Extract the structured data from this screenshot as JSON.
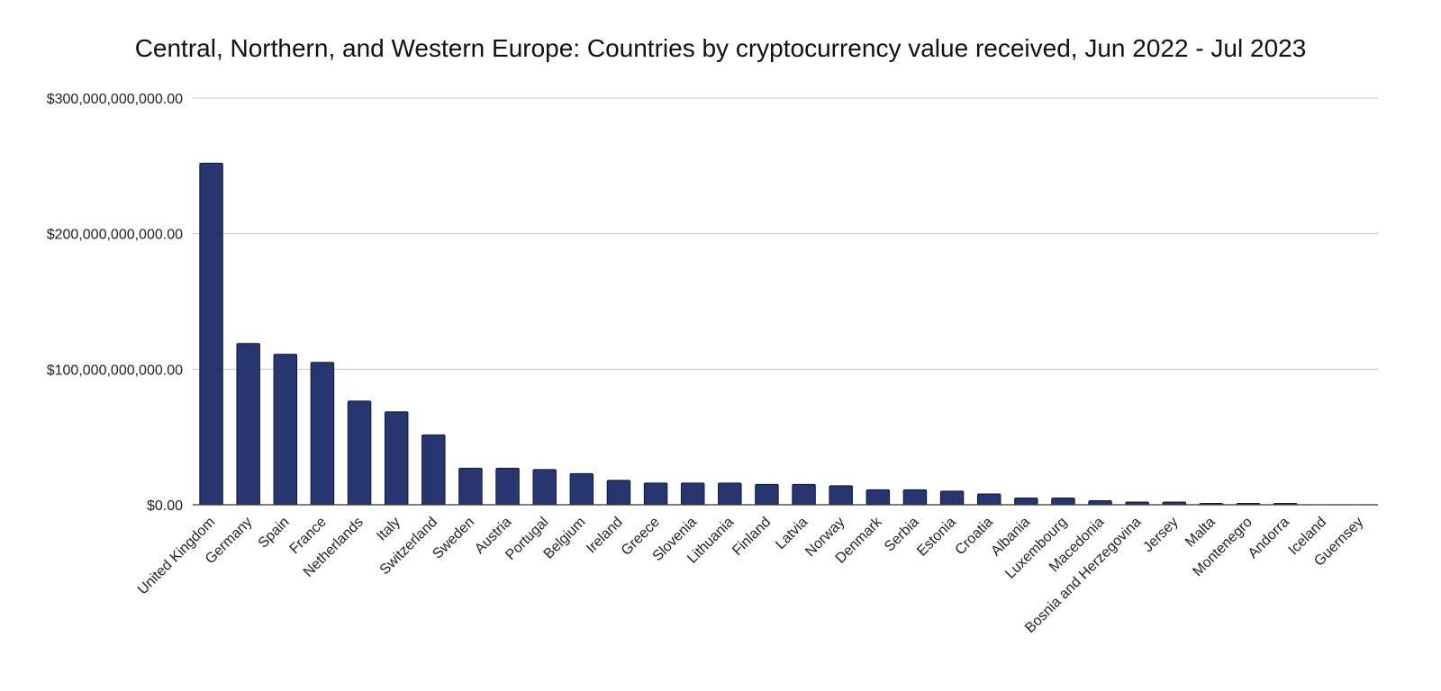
{
  "chart_data": {
    "type": "bar",
    "title": "Central, Northern, and Western Europe: Countries by cryptocurrency value received, Jun 2022 - Jul 2023",
    "xlabel": "",
    "ylabel": "",
    "ylim": [
      0,
      300000000000
    ],
    "yticks": [
      0,
      100000000000,
      200000000000,
      300000000000
    ],
    "ytick_labels": [
      "$0.00",
      "$100,000,000,000.00",
      "$200,000,000,000.00",
      "$300,000,000,000.00"
    ],
    "grid": true,
    "legend": "none",
    "bar_color": "#283670",
    "categories": [
      "United Kingdom",
      "Germany",
      "Spain",
      "France",
      "Netherlands",
      "Italy",
      "Switzerland",
      "Sweden",
      "Austria",
      "Portugal",
      "Belgium",
      "Ireland",
      "Greece",
      "Slovenia",
      "Lithuania",
      "Finland",
      "Latvia",
      "Norway",
      "Denmark",
      "Serbia",
      "Estonia",
      "Croatia",
      "Albania",
      "Luxembourg",
      "Macedonia",
      "Bosnia and Herzegovina",
      "Jersey",
      "Malta",
      "Montenegro",
      "Andorra",
      "Iceland",
      "Guernsey"
    ],
    "values": [
      252000000000,
      119000000000,
      111000000000,
      105000000000,
      76500000000,
      68500000000,
      51500000000,
      27000000000,
      27000000000,
      26000000000,
      23000000000,
      18000000000,
      16000000000,
      16000000000,
      16000000000,
      15000000000,
      15000000000,
      14000000000,
      11000000000,
      11000000000,
      10000000000,
      8000000000,
      5000000000,
      5000000000,
      3000000000,
      2000000000,
      2000000000,
      1000000000,
      1000000000,
      1000000000,
      0,
      0
    ]
  }
}
